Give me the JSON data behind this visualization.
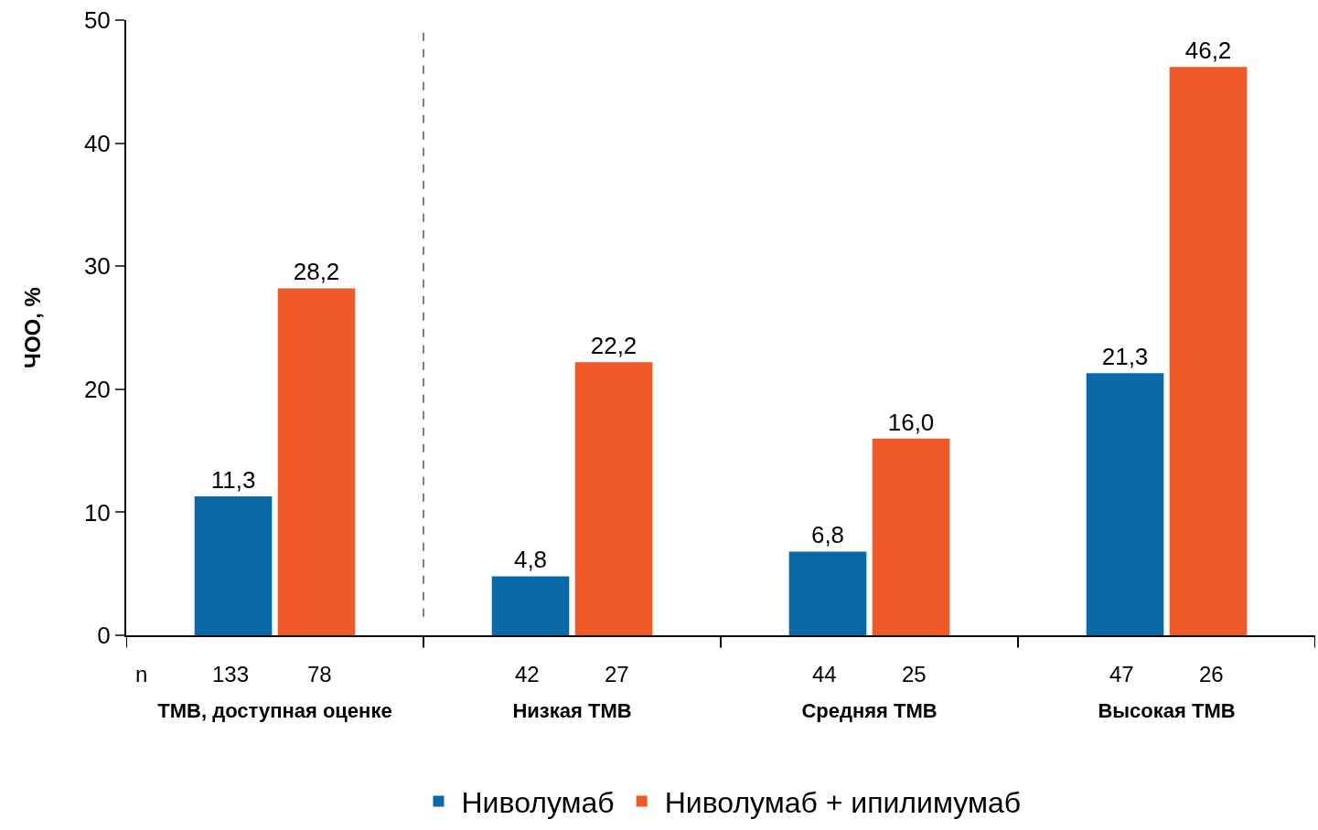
{
  "chart_data": {
    "type": "bar",
    "ylabel": "ЧОО, %",
    "categories": [
      "TMB, доступная оценке",
      "Низкая TMB",
      "Средняя TMB",
      "Высокая TMB"
    ],
    "series": [
      {
        "name": "Ниволумаб",
        "color": "#0a6aa8",
        "values": [
          11.3,
          4.8,
          6.8,
          21.3
        ],
        "value_labels": [
          "11,3",
          "4,8",
          "6,8",
          "21,3"
        ]
      },
      {
        "name": "Ниволумаб + ипилимумаб",
        "color": "#f05a28",
        "values": [
          28.2,
          22.2,
          16.0,
          46.2
        ],
        "value_labels": [
          "28,2",
          "22,2",
          "16,0",
          "46,2"
        ]
      }
    ],
    "ylim": [
      0,
      50
    ],
    "yticks": [
      0,
      10,
      20,
      30,
      40,
      50
    ],
    "legend": "bottom",
    "annotations": [
      "n",
      "133",
      "78",
      "42",
      "27",
      "44",
      "25",
      "47",
      "26"
    ]
  }
}
